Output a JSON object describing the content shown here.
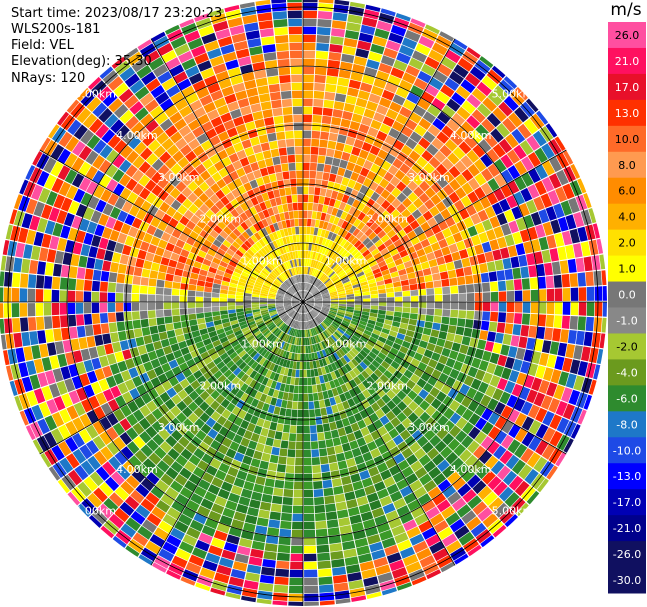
{
  "header": {
    "start_time": "Start time: 2023/08/17 23:20:23",
    "instrument": "WLS200s-181",
    "field": "Field: VEL",
    "elevation": "Elevation(deg): 35.30",
    "nrays": "NRays: 120"
  },
  "colorbar": {
    "unit": "m/s",
    "ticks": [
      "26.0",
      "21.0",
      "17.0",
      "13.0",
      "10.0",
      "8.0",
      "6.0",
      "4.0",
      "2.0",
      "1.0",
      "0.0",
      "-1.0",
      "-2.0",
      "-4.0",
      "-6.0",
      "-8.0",
      "-10.0",
      "-13.0",
      "-17.0",
      "-21.0",
      "-26.0",
      "-30.0"
    ],
    "colors": [
      "#ff4fa0",
      "#ff1060",
      "#e8102a",
      "#ff3000",
      "#ff6a28",
      "#ff9a50",
      "#ff8c00",
      "#ffb000",
      "#ffe000",
      "#ffff00",
      "#777777",
      "#888888",
      "#a6c832",
      "#6b9a1e",
      "#2e8b2e",
      "#1e78c8",
      "#1e4ae6",
      "#0000ff",
      "#0000b4",
      "#00008c",
      "#101060",
      "#101060"
    ]
  },
  "rings": {
    "label": [
      "1.00km",
      "2.00km",
      "3.00km",
      "4.00km",
      "5.00km"
    ]
  }
}
